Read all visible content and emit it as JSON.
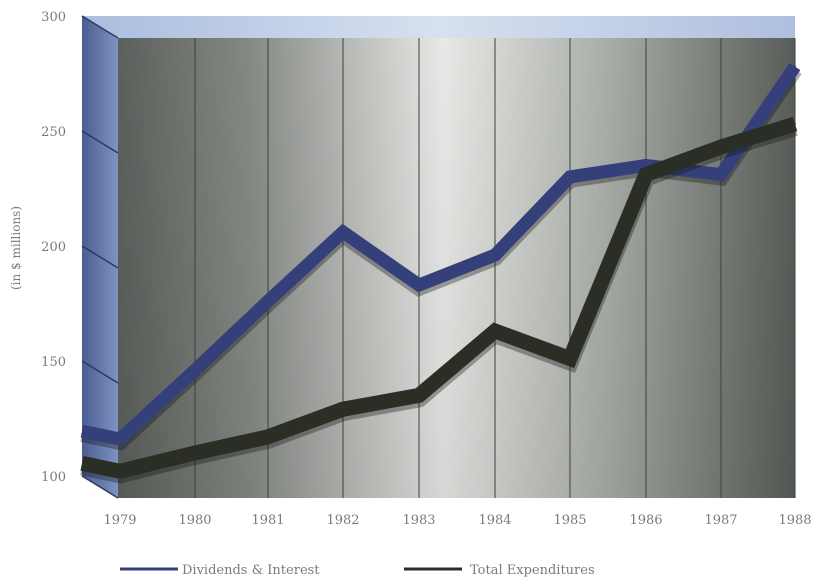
{
  "chart_data": {
    "type": "line",
    "title": "",
    "xlabel": "",
    "ylabel": "(in $ millions)",
    "ylim": [
      100,
      300
    ],
    "yticks": [
      100,
      150,
      200,
      250,
      300
    ],
    "categories": [
      "1979",
      "1980",
      "1981",
      "1982",
      "1983",
      "1984",
      "1985",
      "1986",
      "1987",
      "1988"
    ],
    "series": [
      {
        "name": "Dividends & Interest",
        "color": "#35407a",
        "values": [
          123,
          153,
          183,
          213,
          190,
          203,
          237,
          242,
          238,
          285
        ]
      },
      {
        "name": "Total Expenditures",
        "color": "#2a2e25",
        "values": [
          109,
          117,
          124,
          136,
          142,
          170,
          158,
          238,
          250,
          260
        ]
      }
    ],
    "grid": true,
    "legend": "bottom",
    "style": "3d"
  }
}
